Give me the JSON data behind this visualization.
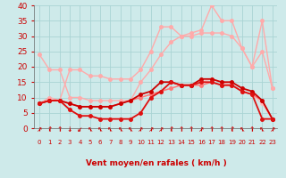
{
  "x": [
    0,
    1,
    2,
    3,
    4,
    5,
    6,
    7,
    8,
    9,
    10,
    11,
    12,
    13,
    14,
    15,
    16,
    17,
    18,
    19,
    20,
    21,
    22,
    23
  ],
  "series": [
    {
      "name": "rafales_max",
      "color": "#ffaaaa",
      "linewidth": 1.0,
      "markersize": 2.5,
      "y": [
        8,
        10,
        9,
        19,
        19,
        17,
        17,
        16,
        16,
        16,
        19,
        25,
        33,
        33,
        30,
        31,
        32,
        40,
        35,
        35,
        26,
        20,
        35,
        13
      ]
    },
    {
      "name": "rafales_avg",
      "color": "#ffaaaa",
      "linewidth": 1.0,
      "markersize": 2.5,
      "y": [
        24,
        19,
        19,
        10,
        10,
        9,
        9,
        9,
        9,
        9,
        15,
        19,
        24,
        28,
        30,
        30,
        31,
        31,
        31,
        30,
        26,
        20,
        25,
        13
      ]
    },
    {
      "name": "vent_moyen_light",
      "color": "#ffbbbb",
      "linewidth": 1.0,
      "markersize": 2.5,
      "y": [
        8,
        9,
        9,
        6,
        4,
        4,
        3,
        3,
        3,
        3,
        5,
        10,
        12,
        15,
        14,
        14,
        15,
        16,
        15,
        14,
        12,
        11,
        8,
        3
      ]
    },
    {
      "name": "vent_moyen_med",
      "color": "#ff7777",
      "linewidth": 1.1,
      "markersize": 2.5,
      "y": [
        8,
        9,
        9,
        8,
        7,
        7,
        7,
        7,
        8,
        9,
        10,
        11,
        12,
        13,
        14,
        14,
        14,
        15,
        14,
        14,
        12,
        11,
        9,
        3
      ]
    },
    {
      "name": "vent_dark1",
      "color": "#cc0000",
      "linewidth": 1.3,
      "markersize": 2.5,
      "y": [
        8,
        9,
        9,
        8,
        7,
        7,
        7,
        7,
        8,
        9,
        11,
        12,
        15,
        15,
        14,
        14,
        16,
        16,
        15,
        15,
        13,
        12,
        9,
        3
      ]
    },
    {
      "name": "vent_dark2",
      "color": "#dd1111",
      "linewidth": 1.3,
      "markersize": 2.5,
      "y": [
        8,
        9,
        9,
        6,
        4,
        4,
        3,
        3,
        3,
        3,
        5,
        10,
        12,
        15,
        14,
        14,
        15,
        15,
        14,
        14,
        12,
        11,
        3,
        3
      ]
    }
  ],
  "arrow_chars": [
    "↗",
    "↑",
    "↑",
    "↓",
    "↙",
    "↖",
    "↖",
    "↖",
    "↖",
    "↖",
    "↗",
    "↗",
    "↗",
    "↑",
    "↑",
    "↑",
    "↗",
    "↑",
    "↑",
    "↑",
    "↖",
    "↑",
    "↖",
    "↗"
  ],
  "xlabel": "Vent moyen/en rafales ( km/h )",
  "ylim": [
    0,
    40
  ],
  "xlim": [
    0,
    23
  ],
  "yticks": [
    0,
    5,
    10,
    15,
    20,
    25,
    30,
    35,
    40
  ],
  "xticks": [
    0,
    1,
    2,
    3,
    4,
    5,
    6,
    7,
    8,
    9,
    10,
    11,
    12,
    13,
    14,
    15,
    16,
    17,
    18,
    19,
    20,
    21,
    22,
    23
  ],
  "bg_color": "#ceeaea",
  "grid_color": "#aad4d4",
  "label_color": "#cc0000",
  "xlabel_fontsize": 6.5,
  "ytick_fontsize": 6.5,
  "xtick_fontsize": 5.0,
  "arrow_fontsize": 5.5
}
